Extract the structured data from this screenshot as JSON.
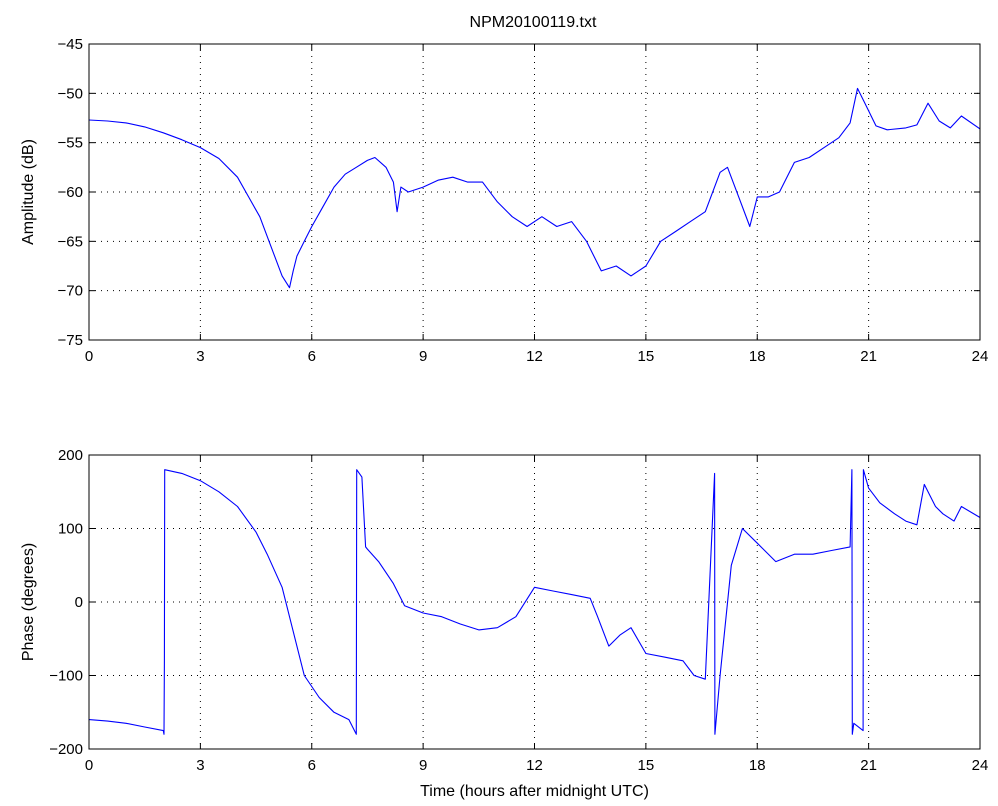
{
  "title": "NPM20100119.txt",
  "chart_data": [
    {
      "type": "line",
      "title": "NPM20100119.txt",
      "xlabel": "",
      "ylabel": "Amplitude (dB)",
      "xlim": [
        0,
        24
      ],
      "ylim": [
        -75,
        -45
      ],
      "xticks": [
        0,
        3,
        6,
        9,
        12,
        15,
        18,
        21,
        24
      ],
      "yticks": [
        -75,
        -70,
        -65,
        -60,
        -55,
        -50,
        -45
      ],
      "grid": true,
      "series": [
        {
          "color": "#0000ff",
          "x": [
            0,
            0.5,
            1,
            1.5,
            2,
            2.5,
            3,
            3.5,
            4,
            4.3,
            4.6,
            4.8,
            5,
            5.2,
            5.4,
            5.5,
            5.6,
            5.8,
            6,
            6.3,
            6.6,
            6.9,
            7.2,
            7.5,
            7.7,
            8,
            8.2,
            8.3,
            8.4,
            8.6,
            9,
            9.4,
            9.8,
            10.2,
            10.6,
            11,
            11.4,
            11.8,
            12.2,
            12.6,
            13,
            13.4,
            13.8,
            14.2,
            14.6,
            15,
            15.4,
            15.8,
            16.2,
            16.6,
            17,
            17.2,
            17.5,
            17.8,
            18,
            18.3,
            18.6,
            19,
            19.4,
            19.8,
            20.2,
            20.5,
            20.7,
            20.9,
            21.2,
            21.5,
            22,
            22.3,
            22.6,
            22.9,
            23.2,
            23.5,
            24
          ],
          "y": [
            -52.7,
            -52.8,
            -53,
            -53.4,
            -54,
            -54.7,
            -55.5,
            -56.6,
            -58.5,
            -60.5,
            -62.5,
            -64.5,
            -66.5,
            -68.5,
            -69.7,
            -68,
            -66.5,
            -65,
            -63.5,
            -61.5,
            -59.5,
            -58.2,
            -57.5,
            -56.8,
            -56.5,
            -57.5,
            -59,
            -62,
            -59.5,
            -60,
            -59.5,
            -58.8,
            -58.5,
            -59,
            -59,
            -61,
            -62.5,
            -63.5,
            -62.5,
            -63.5,
            -63,
            -65,
            -68,
            -67.5,
            -68.5,
            -67.5,
            -65,
            -64,
            -63,
            -62,
            -58,
            -57.5,
            -60.5,
            -63.5,
            -60.5,
            -60.5,
            -60,
            -57,
            -56.5,
            -55.5,
            -54.5,
            -53,
            -49.5,
            -51,
            -53.3,
            -53.7,
            -53.5,
            -53.2,
            -51,
            -52.8,
            -53.5,
            -52.3,
            -53.6
          ]
        }
      ]
    },
    {
      "type": "line",
      "title": "",
      "xlabel": "Time (hours after midnight UTC)",
      "ylabel": "Phase (degrees)",
      "xlim": [
        0,
        24
      ],
      "ylim": [
        -200,
        200
      ],
      "xticks": [
        0,
        3,
        6,
        9,
        12,
        15,
        18,
        21,
        24
      ],
      "yticks": [
        -200,
        -100,
        0,
        100,
        200
      ],
      "grid": true,
      "series": [
        {
          "color": "#0000ff",
          "x": [
            0,
            0.5,
            1,
            1.5,
            2,
            2.02,
            2.03,
            2.04,
            2.5,
            3,
            3.5,
            4,
            4.5,
            4.8,
            5.2,
            5.5,
            5.8,
            6.2,
            6.6,
            7,
            7.2,
            7.21,
            7.35,
            7.45,
            7.5,
            7.8,
            8.2,
            8.5,
            9,
            9.5,
            10,
            10.5,
            11,
            11.5,
            12,
            12.5,
            13,
            13.5,
            13.7,
            14,
            14.3,
            14.6,
            15,
            15.5,
            16,
            16.3,
            16.6,
            16.85,
            16.86,
            17,
            17.3,
            17.6,
            18,
            18.5,
            19,
            19.5,
            20,
            20.5,
            20.55,
            20.56,
            20.6,
            20.85,
            20.86,
            21,
            21.3,
            21.7,
            22,
            22.3,
            22.5,
            22.8,
            23,
            23.3,
            23.5,
            24
          ],
          "y": [
            -160,
            -162,
            -165,
            -170,
            -175,
            -180,
            -80,
            180,
            175,
            165,
            150,
            130,
            95,
            65,
            20,
            -40,
            -100,
            -130,
            -150,
            -160,
            -180,
            180,
            170,
            75,
            72,
            55,
            25,
            -5,
            -15,
            -20,
            -30,
            -38,
            -35,
            -20,
            20,
            15,
            10,
            5,
            -20,
            -60,
            -45,
            -35,
            -70,
            -75,
            -80,
            -100,
            -105,
            175,
            -180,
            -100,
            50,
            100,
            80,
            55,
            65,
            65,
            70,
            75,
            180,
            -180,
            -165,
            -175,
            180,
            155,
            135,
            120,
            110,
            105,
            160,
            130,
            120,
            110,
            130,
            115
          ]
        }
      ]
    }
  ]
}
